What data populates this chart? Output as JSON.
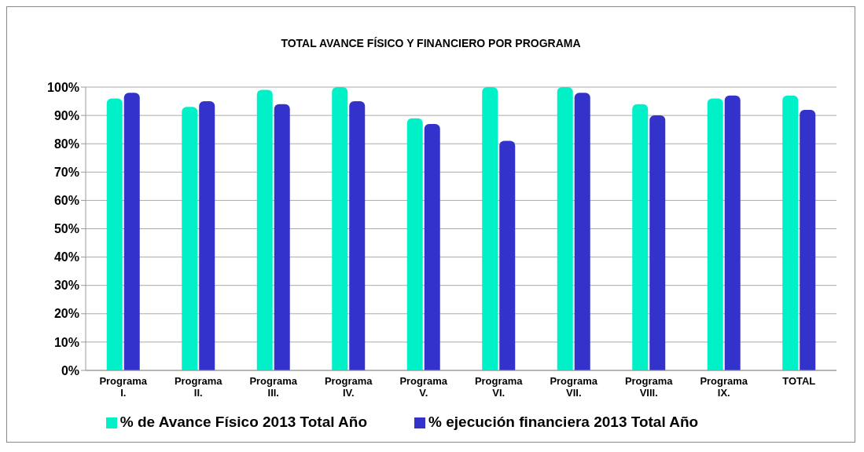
{
  "chart_data": {
    "type": "bar",
    "title": "TOTAL AVANCE FÍSICO Y FINANCIERO POR PROGRAMA",
    "categories": [
      "Programa I.",
      "Programa II.",
      "Programa III.",
      "Programa IV.",
      "Programa V.",
      "Programa VI.",
      "Programa VII.",
      "Programa VIII.",
      "Programa IX.",
      "TOTAL"
    ],
    "series": [
      {
        "name": "% de Avance Físico 2013 Total Año",
        "color": "#00f0c8",
        "values": [
          96,
          93,
          99,
          100,
          89,
          100,
          100,
          94,
          96,
          97
        ]
      },
      {
        "name": "% ejecución financiera 2013 Total Año",
        "color": "#3333cc",
        "values": [
          98,
          95,
          94,
          95,
          87,
          81,
          98,
          90,
          97,
          92
        ]
      }
    ],
    "ylim": [
      0,
      100
    ],
    "yticks": [
      {
        "value": 0,
        "label": "0%"
      },
      {
        "value": 10,
        "label": "10%"
      },
      {
        "value": 20,
        "label": "20%"
      },
      {
        "value": 30,
        "label": "30%"
      },
      {
        "value": 40,
        "label": "40%"
      },
      {
        "value": 50,
        "label": "50%"
      },
      {
        "value": 60,
        "label": "60%"
      },
      {
        "value": 70,
        "label": "70%"
      },
      {
        "value": 80,
        "label": "80%"
      },
      {
        "value": 90,
        "label": "90%"
      },
      {
        "value": 100,
        "label": "100%"
      }
    ],
    "grid": "y",
    "legend": "bottom"
  }
}
